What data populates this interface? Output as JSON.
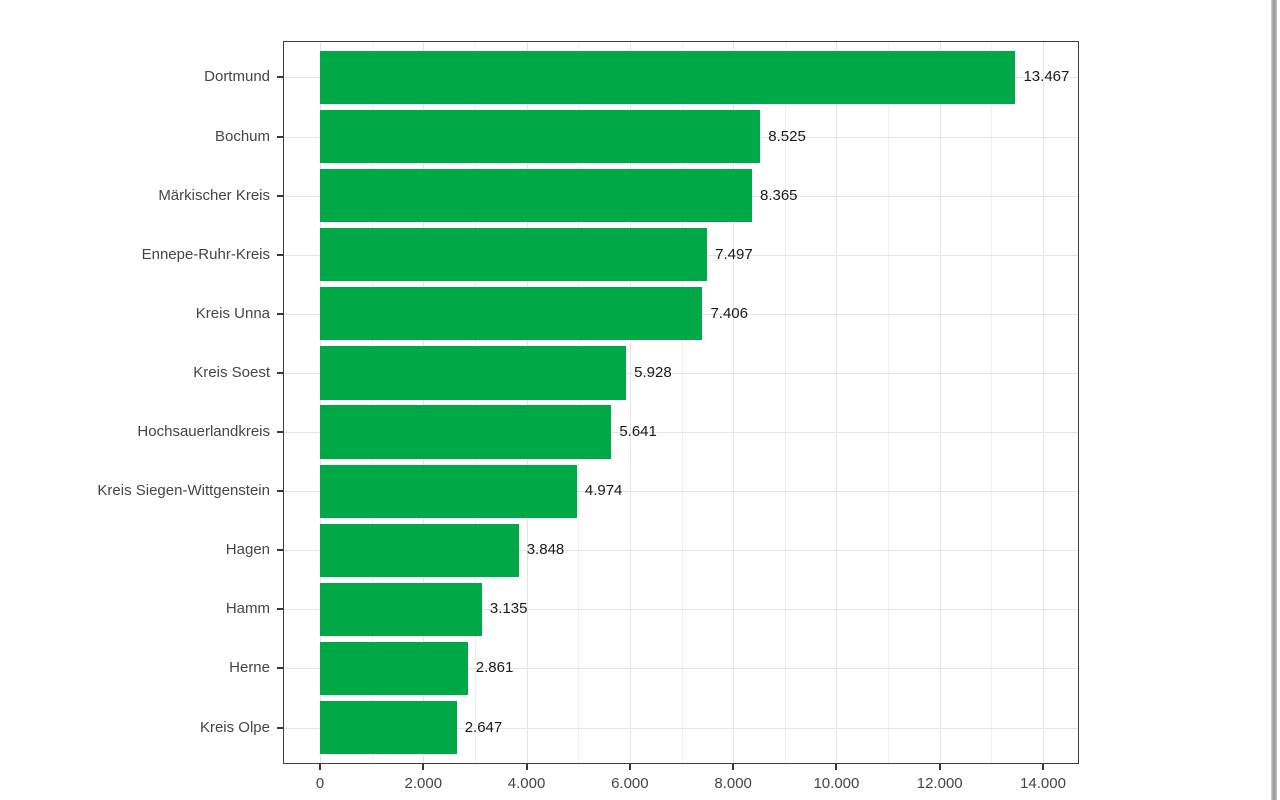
{
  "chart_data": {
    "type": "bar",
    "orientation": "horizontal",
    "title": "",
    "xlabel": "",
    "ylabel": "",
    "grid": true,
    "legend": false,
    "categories": [
      "Dortmund",
      "Bochum",
      "Märkischer Kreis",
      "Ennepe-Ruhr-Kreis",
      "Kreis Unna",
      "Kreis Soest",
      "Hochsauerlandkreis",
      "Kreis Siegen-Wittgenstein",
      "Hagen",
      "Hamm",
      "Herne",
      "Kreis Olpe"
    ],
    "values": [
      13467,
      8525,
      8365,
      7497,
      7406,
      5928,
      5641,
      4974,
      3848,
      3135,
      2861,
      2647
    ],
    "value_labels": [
      "13.467",
      "8.525",
      "8.365",
      "7.497",
      "7.406",
      "5.928",
      "5.641",
      "4.974",
      "3.848",
      "3.135",
      "2.861",
      "2.647"
    ],
    "x_ticks": [
      0,
      2000,
      4000,
      6000,
      8000,
      10000,
      12000,
      14000
    ],
    "x_tick_labels": [
      "0",
      "2.000",
      "4.000",
      "6.000",
      "8.000",
      "10.000",
      "12.000",
      "14.000"
    ],
    "x_minor_ticks": [
      1000,
      3000,
      5000,
      7000,
      9000,
      11000,
      13000
    ],
    "xlim": [
      0,
      14000
    ]
  },
  "colors": {
    "bar": "#00a847",
    "panel_border": "#3f3f3f",
    "grid_major": "#e4e4e4",
    "grid_minor": "#efefef",
    "axis_text": "#454545",
    "value_text": "#1a1a1a",
    "tick": "#383838",
    "background": "#ffffff"
  }
}
